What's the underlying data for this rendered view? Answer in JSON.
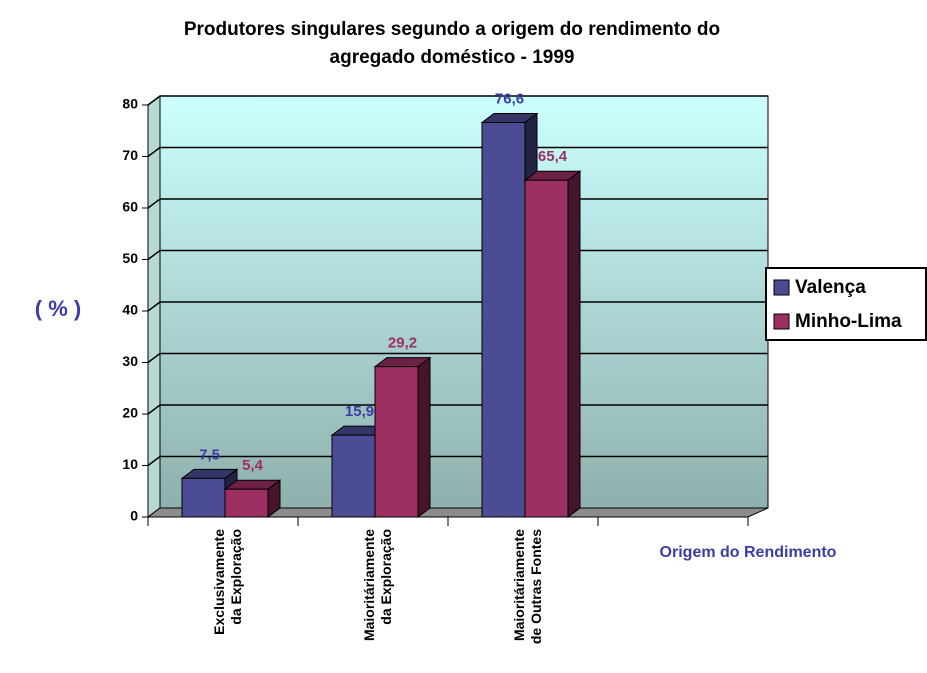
{
  "chart_data": {
    "type": "bar3d",
    "title": [
      "Produtores singulares segundo a origem do rendimento do",
      "agregado doméstico - 1999"
    ],
    "ylabel": "( % )",
    "xlabel": "Origem do Rendimento",
    "categories": [
      [
        "Exclusivamente",
        "da Exploração"
      ],
      [
        "Maioritáriamente",
        "da Exploração"
      ],
      [
        "Maioritáriamente",
        "de Outras Fontes"
      ],
      null
    ],
    "series": [
      {
        "name": "Valença",
        "color": "#4c4c94",
        "label_color": "#3c3ca8",
        "values": [
          7.5,
          15.9,
          76.6,
          null
        ],
        "value_labels": [
          "7,5",
          "15,9",
          "76,6",
          null
        ]
      },
      {
        "name": "Minho-Lima",
        "color": "#9c2f62",
        "label_color": "#9c2f62",
        "values": [
          5.4,
          29.2,
          65.4,
          null
        ],
        "value_labels": [
          "5,4",
          "29,2",
          "65,4",
          null
        ]
      }
    ],
    "ylim": [
      0,
      80
    ],
    "yticks": [
      0,
      10,
      20,
      30,
      40,
      50,
      60,
      70,
      80
    ],
    "grid": true,
    "legend": "right"
  }
}
